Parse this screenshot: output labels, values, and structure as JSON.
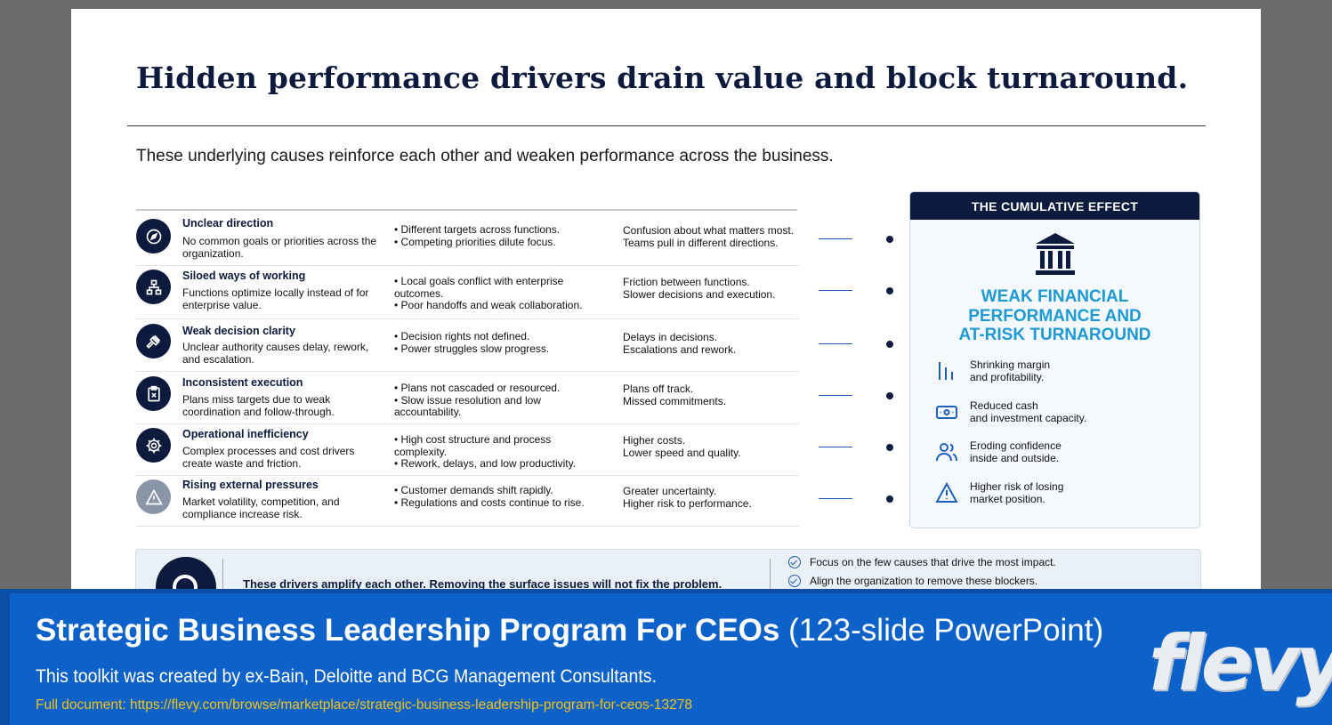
{
  "slide": {
    "title": "Hidden performance drivers drain value and block turnaround.",
    "subtitle": "These underlying causes reinforce each other and weaken performance across the business.",
    "rows": [
      {
        "icon": "compass-icon",
        "heading": "Unclear direction",
        "desc": "No common goals or priorities across the organization.",
        "symptoms": [
          "• Different targets across functions.",
          "• Competing priorities dilute focus."
        ],
        "effects": [
          "Confusion about what matters most.",
          "Teams pull in different directions."
        ]
      },
      {
        "icon": "org-chart-icon",
        "heading": "Siloed ways of working",
        "desc": "Functions optimize locally instead of for enterprise value.",
        "symptoms": [
          "• Local goals conflict with enterprise outcomes.",
          "• Poor handoffs and weak collaboration."
        ],
        "effects": [
          "Friction between functions.",
          "Slower decisions and execution."
        ]
      },
      {
        "icon": "gavel-icon",
        "heading": "Weak decision clarity",
        "desc": "Unclear authority causes delay, rework, and escalation.",
        "symptoms": [
          "• Decision rights not defined.",
          "• Power struggles slow progress."
        ],
        "effects": [
          "Delays in decisions.",
          "Escalations and rework."
        ]
      },
      {
        "icon": "clipboard-x-icon",
        "heading": "Inconsistent execution",
        "desc": "Plans miss targets due to weak coordination and follow-through.",
        "symptoms": [
          "• Plans not cascaded or resourced.",
          "• Slow issue resolution and low accountability."
        ],
        "effects": [
          "Plans off track.",
          "Missed commitments."
        ]
      },
      {
        "icon": "gear-icon",
        "heading": "Operational inefficiency",
        "desc": "Complex processes and cost drivers create waste and friction.",
        "symptoms": [
          "• High cost structure and process complexity.",
          "• Rework, delays, and low productivity."
        ],
        "effects": [
          "Higher costs.",
          "Lower speed and quality."
        ]
      },
      {
        "icon": "warning-icon",
        "heading": "Rising external pressures",
        "desc": "Market volatility, competition, and compliance increase risk.",
        "symptoms": [
          "• Customer demands shift rapidly.",
          "• Regulations and costs continue to rise."
        ],
        "effects": [
          "Greater uncertainty.",
          "Higher risk to performance."
        ]
      }
    ],
    "panel": {
      "header": "THE CUMULATIVE EFFECT",
      "title_lines": [
        "WEAK FINANCIAL",
        "PERFORMANCE AND",
        "AT-RISK TURNAROUND"
      ],
      "effects": [
        {
          "icon": "bar-chart-icon",
          "lines": [
            "Shrinking margin",
            "and profitability."
          ]
        },
        {
          "icon": "cash-icon",
          "lines": [
            "Reduced cash",
            "and investment capacity."
          ]
        },
        {
          "icon": "people-icon",
          "lines": [
            "Eroding confidence",
            "inside and outside."
          ]
        },
        {
          "icon": "warning-icon",
          "lines": [
            "Higher risk of losing",
            "market position."
          ]
        }
      ]
    },
    "bottom": {
      "text": "These drivers amplify each other. Removing the surface issues will not fix the problem.",
      "checks": [
        "Focus on the few causes that drive the most impact.",
        "Align the organization to remove these blockers."
      ]
    }
  },
  "banner": {
    "title_bold": "Strategic Business Leadership Program For CEOs",
    "title_light": " (123-slide PowerPoint)",
    "subtitle": "This toolkit was created by ex-Bain, Deloitte and BCG Management Consultants.",
    "link": "Full document: https://flevy.com/browse/marketplace/strategic-business-leadership-program-for-ceos-13278",
    "logo": "flevy"
  }
}
